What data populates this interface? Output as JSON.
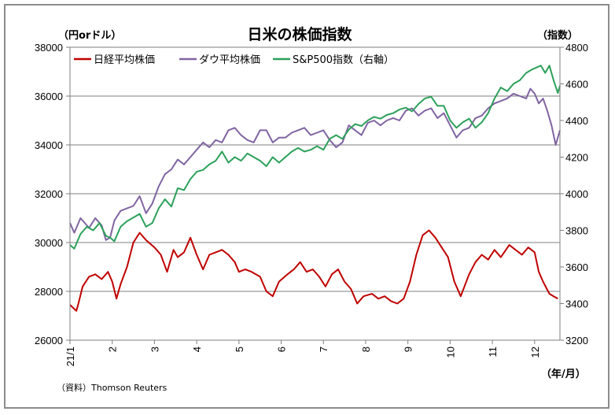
{
  "chart_data": {
    "type": "line",
    "title": "日米の株価指数",
    "left_unit": "（円orドル）",
    "right_unit": "（指数）",
    "x_unit": "（年/月）",
    "source": "（資料）Thomson Reuters",
    "xlim": [
      0,
      11.6
    ],
    "month_labels": [
      "21/1",
      "2",
      "3",
      "4",
      "5",
      "6",
      "7",
      "8",
      "9",
      "10",
      "11",
      "12"
    ],
    "y_left": {
      "lim": [
        26000,
        38000
      ],
      "ticks": [
        "26000",
        "28000",
        "30000",
        "32000",
        "34000",
        "36000",
        "38000"
      ]
    },
    "y_right": {
      "lim": [
        3200,
        4800
      ],
      "ticks": [
        "3200",
        "3400",
        "3600",
        "3800",
        "4000",
        "4200",
        "4400",
        "4600",
        "4800"
      ]
    },
    "grid": true,
    "legend_position": "top-left",
    "series": [
      {
        "name": "日経平均株価",
        "axis": "left",
        "color": "#c00000",
        "x": [
          0,
          0.15,
          0.2,
          0.3,
          0.45,
          0.6,
          0.75,
          0.9,
          1.0,
          1.1,
          1.2,
          1.35,
          1.5,
          1.65,
          1.8,
          2.0,
          2.15,
          2.3,
          2.45,
          2.55,
          2.7,
          2.85,
          3.0,
          3.15,
          3.3,
          3.45,
          3.6,
          3.75,
          3.9,
          4.0,
          4.15,
          4.3,
          4.5,
          4.65,
          4.8,
          4.95,
          5.15,
          5.3,
          5.45,
          5.6,
          5.75,
          5.9,
          6.05,
          6.2,
          6.35,
          6.5,
          6.65,
          6.8,
          6.95,
          7.15,
          7.3,
          7.45,
          7.6,
          7.75,
          7.9,
          8.05,
          8.2,
          8.35,
          8.5,
          8.65,
          8.8,
          8.95,
          9.1,
          9.25,
          9.45,
          9.6,
          9.75,
          9.9,
          10.05,
          10.2,
          10.4,
          10.55,
          10.7,
          10.85,
          11.0,
          11.1,
          11.2,
          11.35,
          11.45,
          11.55
        ],
        "values": [
          27450,
          27200,
          27500,
          28200,
          28600,
          28700,
          28500,
          28800,
          28400,
          27700,
          28300,
          29000,
          30000,
          30400,
          30100,
          29800,
          29500,
          28800,
          29700,
          29400,
          29600,
          30200,
          29500,
          28900,
          29500,
          29600,
          29700,
          29500,
          29200,
          28800,
          28900,
          28800,
          28600,
          28000,
          27800,
          28400,
          28700,
          28900,
          29200,
          28800,
          28900,
          28600,
          28200,
          28700,
          28900,
          28400,
          28100,
          27500,
          27800,
          27900,
          27700,
          27800,
          27600,
          27500,
          27700,
          28400,
          29500,
          30300,
          30500,
          30200,
          29800,
          29400,
          28400,
          27800,
          28700,
          29200,
          29500,
          29300,
          29700,
          29400,
          29900,
          29700,
          29500,
          29800,
          29600,
          28800,
          28400,
          27900,
          27800,
          27700
        ]
      },
      {
        "name": "ダウ平均株価",
        "axis": "left",
        "color": "#8064a2",
        "x": [
          0,
          0.1,
          0.25,
          0.45,
          0.6,
          0.75,
          0.85,
          0.95,
          1.05,
          1.2,
          1.35,
          1.5,
          1.65,
          1.8,
          1.95,
          2.1,
          2.25,
          2.4,
          2.55,
          2.7,
          2.85,
          3.0,
          3.15,
          3.3,
          3.45,
          3.6,
          3.75,
          3.9,
          4.05,
          4.2,
          4.35,
          4.5,
          4.65,
          4.8,
          4.95,
          5.1,
          5.25,
          5.4,
          5.55,
          5.7,
          5.85,
          6.0,
          6.15,
          6.3,
          6.45,
          6.6,
          6.75,
          6.9,
          7.05,
          7.2,
          7.35,
          7.5,
          7.65,
          7.8,
          7.95,
          8.1,
          8.25,
          8.4,
          8.55,
          8.7,
          8.85,
          9.0,
          9.15,
          9.3,
          9.45,
          9.6,
          9.75,
          9.9,
          10.05,
          10.2,
          10.35,
          10.5,
          10.65,
          10.8,
          10.9,
          11.0,
          11.1,
          11.2,
          11.3,
          11.4,
          11.5,
          11.6
        ],
        "values": [
          30800,
          30400,
          31000,
          30600,
          31000,
          30700,
          30100,
          30200,
          30900,
          31300,
          31400,
          31500,
          31900,
          31200,
          31600,
          32300,
          32800,
          33000,
          33400,
          33200,
          33500,
          33800,
          34100,
          33900,
          34200,
          34100,
          34600,
          34700,
          34400,
          34200,
          34100,
          34600,
          34600,
          34100,
          34300,
          34300,
          34500,
          34600,
          34700,
          34400,
          34500,
          34600,
          34200,
          33900,
          34100,
          34800,
          34600,
          34400,
          34900,
          35000,
          34800,
          35000,
          35100,
          35000,
          35400,
          35500,
          35200,
          35400,
          35500,
          35100,
          35300,
          34800,
          34300,
          34600,
          34700,
          35100,
          35200,
          35500,
          35700,
          35800,
          35900,
          36100,
          36000,
          35900,
          36300,
          36100,
          35700,
          35900,
          35400,
          34800,
          34000,
          34600
        ]
      },
      {
        "name": "S&P500指数（右軸）",
        "axis": "right",
        "color": "#2ca05a",
        "x": [
          0,
          0.1,
          0.25,
          0.4,
          0.55,
          0.7,
          0.85,
          0.95,
          1.05,
          1.2,
          1.35,
          1.5,
          1.65,
          1.8,
          1.95,
          2.1,
          2.25,
          2.4,
          2.55,
          2.7,
          2.85,
          3.0,
          3.15,
          3.3,
          3.45,
          3.6,
          3.75,
          3.9,
          4.05,
          4.2,
          4.35,
          4.5,
          4.65,
          4.8,
          4.95,
          5.1,
          5.25,
          5.4,
          5.55,
          5.7,
          5.85,
          6.0,
          6.15,
          6.3,
          6.45,
          6.6,
          6.75,
          6.9,
          7.05,
          7.2,
          7.35,
          7.5,
          7.65,
          7.8,
          7.95,
          8.1,
          8.25,
          8.4,
          8.55,
          8.7,
          8.85,
          9.0,
          9.15,
          9.3,
          9.45,
          9.6,
          9.75,
          9.9,
          10.05,
          10.2,
          10.35,
          10.5,
          10.65,
          10.8,
          10.95,
          11.05,
          11.15,
          11.25,
          11.35,
          11.45,
          11.55,
          11.6
        ],
        "values": [
          3720,
          3700,
          3780,
          3820,
          3800,
          3840,
          3770,
          3760,
          3740,
          3820,
          3850,
          3870,
          3890,
          3820,
          3840,
          3920,
          3970,
          3930,
          4030,
          4020,
          4080,
          4120,
          4130,
          4160,
          4180,
          4230,
          4170,
          4200,
          4180,
          4220,
          4200,
          4180,
          4150,
          4200,
          4170,
          4200,
          4230,
          4250,
          4230,
          4240,
          4260,
          4240,
          4300,
          4320,
          4300,
          4350,
          4380,
          4370,
          4400,
          4420,
          4410,
          4430,
          4440,
          4460,
          4470,
          4450,
          4490,
          4520,
          4530,
          4480,
          4480,
          4400,
          4360,
          4390,
          4410,
          4360,
          4390,
          4440,
          4520,
          4580,
          4560,
          4600,
          4620,
          4660,
          4680,
          4690,
          4700,
          4660,
          4700,
          4620,
          4550,
          4590
        ]
      }
    ]
  }
}
